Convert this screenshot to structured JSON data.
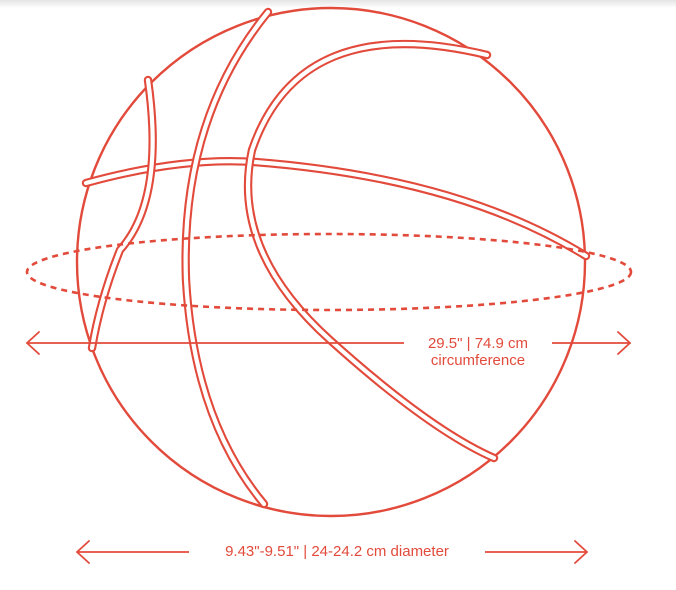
{
  "colors": {
    "accent": "#e24a3b",
    "background": "#ffffff"
  },
  "circumference": {
    "value": "29.5\" | 74.9 cm",
    "caption": "circumference"
  },
  "diameter": {
    "label": "9.43\"-9.51\" | 24-24.2 cm diameter"
  }
}
